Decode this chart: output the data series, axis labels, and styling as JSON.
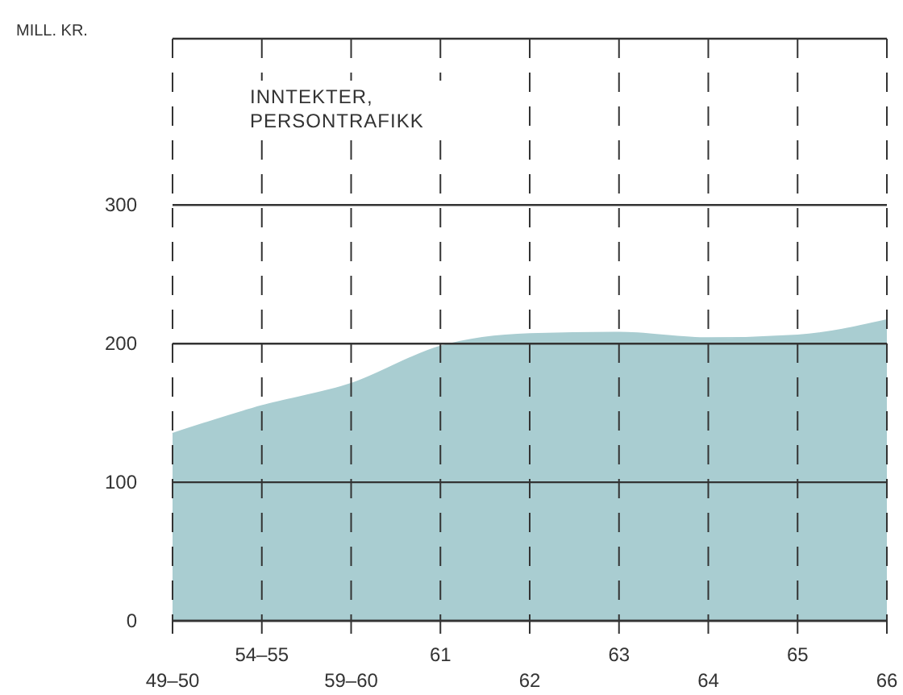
{
  "chart_data": {
    "type": "area",
    "title": "INNTEKTER, PERSONTRAFIKK",
    "ylabel": "MILL. KR.",
    "categories": [
      "49–50",
      "54–55",
      "59–60",
      "61",
      "62",
      "63",
      "64",
      "65",
      "66"
    ],
    "series": [
      {
        "color": "#a9cdd1",
        "values": [
          135,
          155,
          171,
          198,
          207,
          208,
          204,
          206,
          217
        ]
      }
    ],
    "ylim": [
      0,
      420
    ],
    "yticks": [
      0,
      100,
      200,
      300
    ],
    "grid": true
  }
}
